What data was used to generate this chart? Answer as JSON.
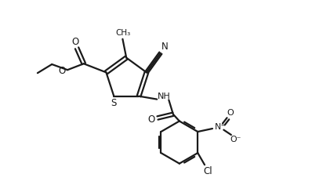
{
  "background_color": "#ffffff",
  "line_color": "#1a1a1a",
  "line_width": 1.6,
  "fig_width": 3.98,
  "fig_height": 2.5,
  "dpi": 100,
  "xlim": [
    0,
    10
  ],
  "ylim": [
    0,
    6.28
  ]
}
